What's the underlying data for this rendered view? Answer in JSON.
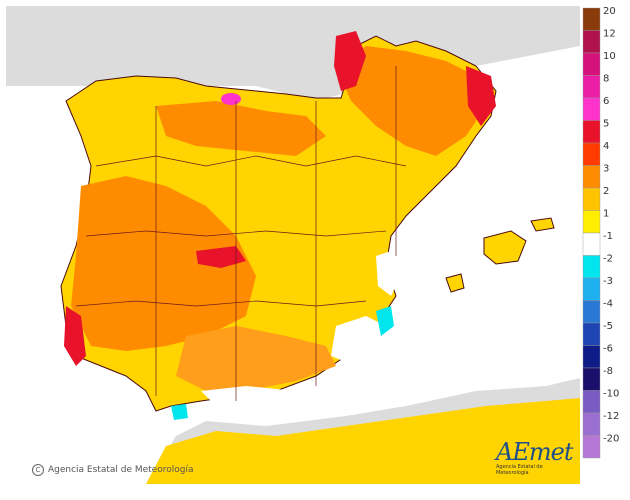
{
  "credit": "Agencia Estatal de Meteorología",
  "logo": {
    "wordmark": "AEmet",
    "subtitle": "Agencia Estatal de Meteorología"
  },
  "legend": [
    {
      "label": "20",
      "color": "#8a3b0c"
    },
    {
      "label": "12",
      "color": "#b0124e"
    },
    {
      "label": "10",
      "color": "#d5117c"
    },
    {
      "label": "8",
      "color": "#ea1fa6"
    },
    {
      "label": "6",
      "color": "#ff33cc"
    },
    {
      "label": "5",
      "color": "#e8122a"
    },
    {
      "label": "4",
      "color": "#ff3b00"
    },
    {
      "label": "3",
      "color": "#ff8c00"
    },
    {
      "label": "2",
      "color": "#ffc400"
    },
    {
      "label": "1",
      "color": "#ffee00"
    },
    {
      "label": "-1",
      "color": "#ffffff"
    },
    {
      "label": "-2",
      "color": "#00e5ee"
    },
    {
      "label": "-3",
      "color": "#1fb0f0"
    },
    {
      "label": "-4",
      "color": "#2a78d6"
    },
    {
      "label": "-5",
      "color": "#1f45b5"
    },
    {
      "label": "-6",
      "color": "#0d1c86"
    },
    {
      "label": "-8",
      "color": "#1a0f6b"
    },
    {
      "label": "-10",
      "color": "#7a5bc4"
    },
    {
      "label": "-12",
      "color": "#9b6fd0"
    },
    {
      "label": "-20",
      "color": "#b678d6"
    }
  ],
  "colors": {
    "sea": "#ffffff",
    "foreign_land": "#dcdcdc",
    "border": "#6a1a1a",
    "coast": "#4a0a0a"
  }
}
